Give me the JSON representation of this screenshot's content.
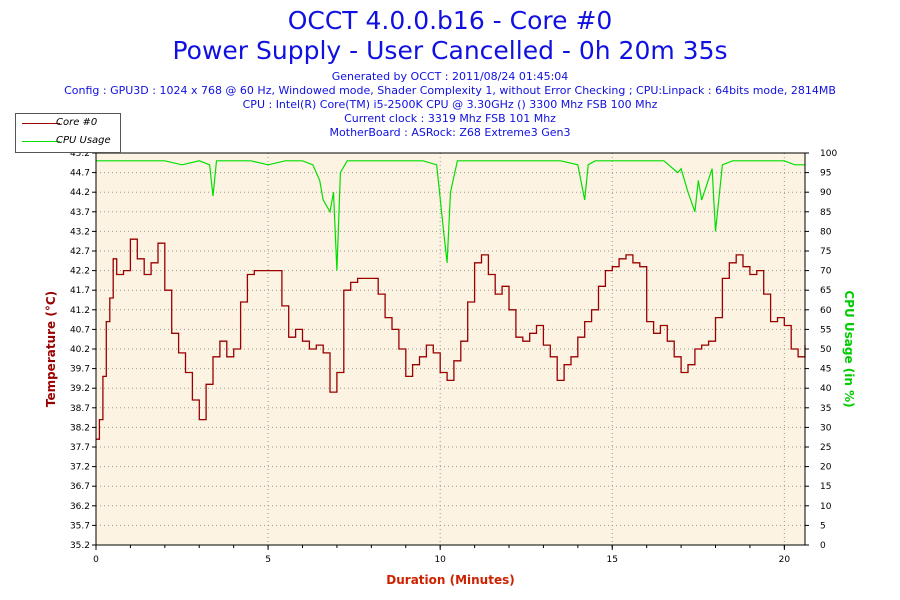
{
  "header": {
    "title": "OCCT 4.0.0.b16 - Core #0",
    "subtitle": "Power Supply - User Cancelled - 0h 20m 35s",
    "info_lines": [
      "Generated by OCCT : 2011/08/24 01:45:04",
      "Config : GPU3D : 1024 x 768 @ 60 Hz, Windowed mode, Shader Complexity 1, without Error Checking ; CPU:Linpack : 64bits mode, 2814MB",
      "CPU : Intel(R) Core(TM) i5-2500K CPU @ 3.30GHz () 3300 Mhz FSB 100 Mhz",
      "Current clock : 3319 Mhz FSB 101 Mhz",
      "MotherBoard : ASRock: Z68 Extreme3 Gen3"
    ]
  },
  "colors": {
    "temperature": "#990000",
    "cpu_usage": "#00e000",
    "plot_bg": "#fdf3e3",
    "title": "#1010e0",
    "axis_label_left": "#990000",
    "axis_label_right": "#00cc00",
    "axis_label_bottom": "#cc2200"
  },
  "chart_data": {
    "type": "line",
    "xlabel": "Duration (Minutes)",
    "ylabel_left": "Temperature (°C)",
    "ylabel_right": "CPU Usage (in %)",
    "xlim": [
      0,
      20.6
    ],
    "ylim_left": [
      35.2,
      45.2
    ],
    "ylim_right": [
      0,
      100
    ],
    "x_ticks": [
      0,
      5,
      10,
      15,
      20
    ],
    "y_ticks_left": [
      35.2,
      35.7,
      36.2,
      36.7,
      37.2,
      37.7,
      38.2,
      38.7,
      39.2,
      39.7,
      40.2,
      40.7,
      41.2,
      41.7,
      42.2,
      42.7,
      43.2,
      43.7,
      44.2,
      44.7,
      45.2
    ],
    "y_tick_labels_left": [
      "35.2",
      "35.7",
      "36.2",
      "36.7",
      "37.2",
      "37.7",
      "38.2",
      "38.7",
      "39.2",
      "39.7",
      "40.2",
      "40.7",
      "41.2",
      "41.7",
      "42.2",
      "42.7",
      "43.2",
      "43.7",
      "44.2",
      "44.7",
      "45.2"
    ],
    "y_ticks_right": [
      0,
      5,
      10,
      15,
      20,
      25,
      30,
      35,
      40,
      45,
      50,
      55,
      60,
      65,
      70,
      75,
      80,
      85,
      90,
      95,
      100
    ],
    "grid": true,
    "legend_position": "top-left",
    "series": [
      {
        "name": "Core #0",
        "axis": "left",
        "x": [
          0,
          0.1,
          0.2,
          0.3,
          0.4,
          0.5,
          0.6,
          0.8,
          1.0,
          1.2,
          1.4,
          1.6,
          1.8,
          2.0,
          2.2,
          2.4,
          2.6,
          2.8,
          3.0,
          3.2,
          3.4,
          3.6,
          3.8,
          4.0,
          4.2,
          4.4,
          4.6,
          4.8,
          5.0,
          5.2,
          5.4,
          5.6,
          5.8,
          6.0,
          6.2,
          6.4,
          6.6,
          6.8,
          7.0,
          7.2,
          7.4,
          7.6,
          7.8,
          8.0,
          8.2,
          8.4,
          8.6,
          8.8,
          9.0,
          9.2,
          9.4,
          9.6,
          9.8,
          10.0,
          10.2,
          10.4,
          10.6,
          10.8,
          11.0,
          11.2,
          11.4,
          11.6,
          11.8,
          12.0,
          12.2,
          12.4,
          12.6,
          12.8,
          13.0,
          13.2,
          13.4,
          13.6,
          13.8,
          14.0,
          14.2,
          14.4,
          14.6,
          14.8,
          15.0,
          15.2,
          15.4,
          15.6,
          15.8,
          16.0,
          16.2,
          16.4,
          16.6,
          16.8,
          17.0,
          17.2,
          17.4,
          17.6,
          17.8,
          18.0,
          18.2,
          18.4,
          18.6,
          18.8,
          19.0,
          19.2,
          19.4,
          19.6,
          19.8,
          20.0,
          20.2,
          20.4,
          20.6
        ],
        "values": [
          37.9,
          38.4,
          39.5,
          40.9,
          41.5,
          42.5,
          42.1,
          42.2,
          43.0,
          42.5,
          42.1,
          42.4,
          42.9,
          41.7,
          40.6,
          40.1,
          39.6,
          38.9,
          38.4,
          39.3,
          40.0,
          40.4,
          40.0,
          40.2,
          41.4,
          42.1,
          42.2,
          42.2,
          42.2,
          42.2,
          41.3,
          40.5,
          40.7,
          40.4,
          40.2,
          40.3,
          40.1,
          39.1,
          39.6,
          41.7,
          41.9,
          42.0,
          42.0,
          42.0,
          41.6,
          41.0,
          40.7,
          40.2,
          39.5,
          39.8,
          40.0,
          40.3,
          40.1,
          39.6,
          39.4,
          39.9,
          40.4,
          41.4,
          42.4,
          42.6,
          42.1,
          41.6,
          41.8,
          41.2,
          40.5,
          40.4,
          40.6,
          40.8,
          40.3,
          40.0,
          39.4,
          39.8,
          40.0,
          40.5,
          40.9,
          41.2,
          41.8,
          42.2,
          42.3,
          42.5,
          42.6,
          42.4,
          42.3,
          40.9,
          40.6,
          40.8,
          40.4,
          40.0,
          39.6,
          39.8,
          40.2,
          40.3,
          40.4,
          41.0,
          42.0,
          42.4,
          42.6,
          42.3,
          42.1,
          42.2,
          41.6,
          40.9,
          41.0,
          40.8,
          40.2,
          40.0,
          40.3
        ]
      },
      {
        "name": "CPU Usage",
        "axis": "right",
        "x": [
          0,
          0.5,
          1.0,
          1.5,
          2.0,
          2.5,
          3.0,
          3.3,
          3.4,
          3.5,
          4.0,
          4.5,
          5.0,
          5.5,
          6.0,
          6.3,
          6.5,
          6.6,
          6.8,
          6.9,
          7.0,
          7.1,
          7.3,
          7.5,
          8.0,
          8.5,
          9.0,
          9.5,
          9.9,
          10.1,
          10.2,
          10.3,
          10.5,
          11.0,
          11.5,
          12.0,
          12.5,
          13.0,
          13.5,
          14.0,
          14.2,
          14.3,
          14.5,
          15.0,
          15.5,
          16.0,
          16.5,
          16.9,
          17.0,
          17.2,
          17.4,
          17.5,
          17.6,
          17.9,
          18.0,
          18.2,
          18.5,
          19.0,
          19.5,
          20.0,
          20.3,
          20.6
        ],
        "values": [
          98,
          98,
          98,
          98,
          98,
          97,
          98,
          97,
          89,
          98,
          98,
          98,
          97,
          98,
          98,
          97,
          93,
          88,
          85,
          90,
          70,
          95,
          98,
          98,
          98,
          98,
          98,
          98,
          97,
          80,
          72,
          90,
          98,
          98,
          98,
          98,
          98,
          98,
          98,
          97,
          88,
          97,
          98,
          98,
          98,
          98,
          98,
          95,
          96,
          90,
          85,
          93,
          88,
          96,
          80,
          97,
          98,
          98,
          98,
          98,
          97,
          97
        ]
      }
    ]
  }
}
